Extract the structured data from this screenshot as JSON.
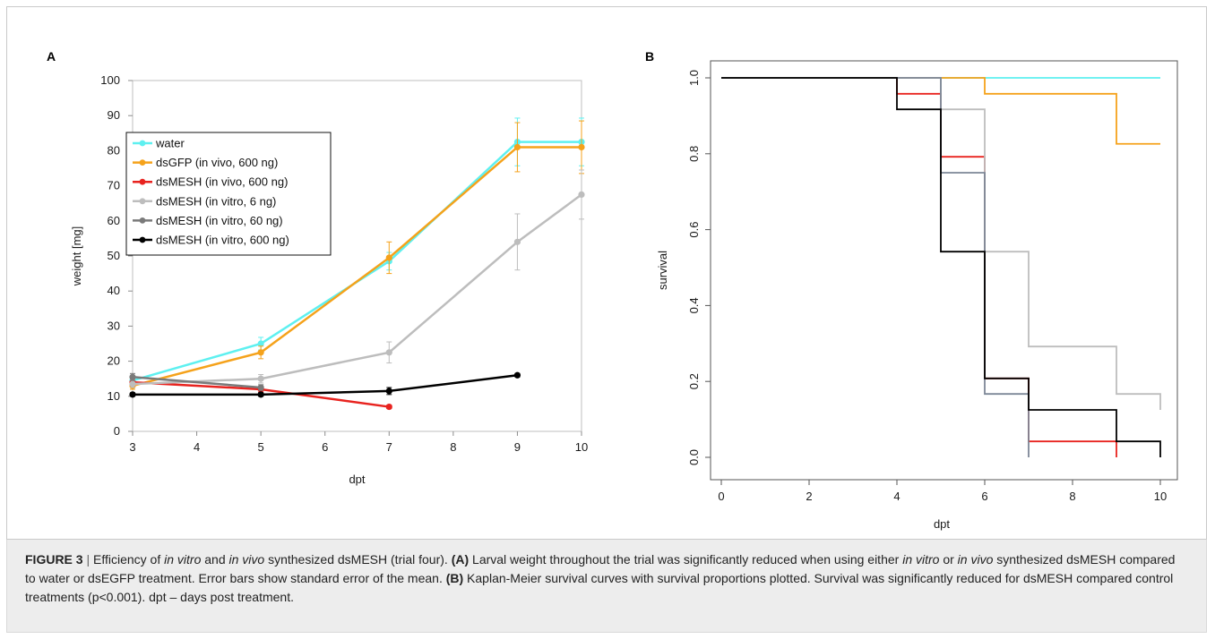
{
  "chart_data": [
    {
      "panel": "A",
      "type": "line",
      "xlabel": "dpt",
      "ylabel": "weight [mg]",
      "x_ticks": [
        3,
        4,
        5,
        6,
        7,
        8,
        9,
        10
      ],
      "y_ticks": [
        0,
        10,
        20,
        30,
        40,
        50,
        60,
        70,
        80,
        90,
        100
      ],
      "xlim": [
        3,
        10
      ],
      "ylim": [
        0,
        100
      ],
      "legend_position": "top-left",
      "series": [
        {
          "name": "water",
          "color": "#5ef0f0",
          "x": [
            3,
            5,
            7,
            9,
            10
          ],
          "y": [
            14.5,
            25,
            48.5,
            82.5,
            82.5
          ],
          "err": [
            1.0,
            1.8,
            2.5,
            6.8,
            6.8
          ]
        },
        {
          "name": "dsGFP (in vivo, 600 ng)",
          "color": "#f5a21b",
          "x": [
            3,
            5,
            7,
            9,
            10
          ],
          "y": [
            13,
            22.5,
            49.5,
            81,
            81
          ],
          "err": [
            1.0,
            1.8,
            4.5,
            7.0,
            7.5
          ]
        },
        {
          "name": "dsMESH (in vivo, 600 ng)",
          "color": "#e8231f",
          "x": [
            3,
            5,
            7
          ],
          "y": [
            14,
            12,
            7
          ],
          "err": [
            1.0,
            0.8,
            0.5
          ]
        },
        {
          "name": "dsMESH (in vitro, 6 ng)",
          "color": "#bdbdbd",
          "x": [
            3,
            5,
            7,
            9,
            10
          ],
          "y": [
            13.5,
            15,
            22.5,
            54,
            67.5
          ],
          "err": [
            1.0,
            1.2,
            3.0,
            8.0,
            7.0
          ]
        },
        {
          "name": "dsMESH (in vitro, 60 ng)",
          "color": "#7a7a7a",
          "x": [
            3,
            5
          ],
          "y": [
            15.5,
            12.5
          ],
          "err": [
            1.0,
            0.8
          ]
        },
        {
          "name": "dsMESH (in vitro, 600 ng)",
          "color": "#000000",
          "x": [
            3,
            5,
            7,
            9
          ],
          "y": [
            10.5,
            10.5,
            11.5,
            16
          ],
          "err": [
            0.5,
            0.5,
            1.0,
            0.5
          ]
        }
      ]
    },
    {
      "panel": "B",
      "type": "line",
      "subtype": "kaplan-meier step",
      "xlabel": "dpt",
      "ylabel": "survival",
      "x_ticks": [
        0,
        2,
        4,
        6,
        8,
        10
      ],
      "y_ticks": [
        "0.0",
        "0.2",
        "0.4",
        "0.6",
        "0.8",
        "1.0"
      ],
      "xlim": [
        0,
        10
      ],
      "ylim": [
        0,
        1
      ],
      "series": [
        {
          "color": "#5ef0f0",
          "steps": [
            [
              0,
              1.0
            ],
            [
              10,
              1.0
            ]
          ]
        },
        {
          "color": "#f5a21b",
          "steps": [
            [
              0,
              1.0
            ],
            [
              6,
              0.958
            ],
            [
              9,
              0.826
            ],
            [
              10,
              0.826
            ]
          ]
        },
        {
          "color": "#e8231f",
          "steps": [
            [
              0,
              1.0
            ],
            [
              4,
              0.958
            ],
            [
              5,
              0.792
            ],
            [
              6,
              0.208
            ],
            [
              7,
              0.042
            ],
            [
              9,
              0.0
            ]
          ]
        },
        {
          "color": "#bdbdbd",
          "steps": [
            [
              0,
              1.0
            ],
            [
              5,
              0.917
            ],
            [
              6,
              0.542
            ],
            [
              7,
              0.292
            ],
            [
              9,
              0.167
            ],
            [
              10,
              0.125
            ]
          ]
        },
        {
          "color": "#7d8797",
          "steps": [
            [
              0,
              1.0
            ],
            [
              5,
              0.75
            ],
            [
              6,
              0.167
            ],
            [
              7,
              0.0
            ]
          ]
        },
        {
          "color": "#000000",
          "steps": [
            [
              0,
              1.0
            ],
            [
              4,
              0.917
            ],
            [
              5,
              0.542
            ],
            [
              6,
              0.208
            ],
            [
              7,
              0.125
            ],
            [
              9,
              0.042
            ],
            [
              10,
              0.0
            ]
          ]
        }
      ]
    }
  ],
  "caption": {
    "label": "FIGURE 3",
    "separator": "|",
    "t1": "Efficiency of ",
    "i1": "in vitro",
    "t2": " and ",
    "i2": "in vivo",
    "t3": " synthesized dsMESH (trial four). ",
    "b1": "(A)",
    "t4": " Larval weight throughout the trial was significantly reduced when using either ",
    "i3": "in vitro",
    "t5": " or ",
    "i4": "in vivo",
    "t6": " synthesized dsMESH compared to water or dsEGFP treatment. Error bars show standard error of the mean. ",
    "b2": "(B)",
    "t7": " Kaplan-Meier survival curves with survival proportions plotted. Survival was significantly reduced for dsMESH compared control treatments (p<0.001). dpt – days post treatment."
  }
}
